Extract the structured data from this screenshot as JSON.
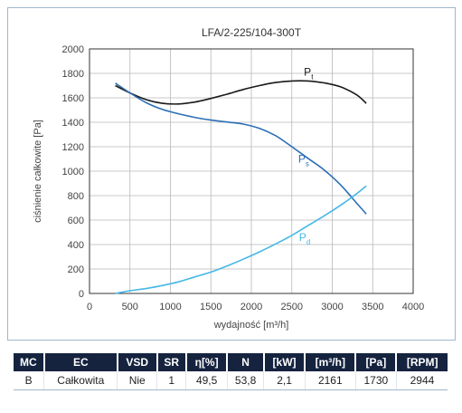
{
  "chart_data": {
    "type": "line",
    "title": "LFA/2-225/104-300T",
    "xlabel": "wydajność [m³/h]",
    "ylabel": "ciśnienie całkowite [Pa]",
    "xlim": [
      0,
      4000
    ],
    "ylim": [
      0,
      2000
    ],
    "xticks": [
      0,
      500,
      1000,
      1500,
      2000,
      2500,
      3000,
      3500,
      4000
    ],
    "yticks": [
      0,
      200,
      400,
      600,
      800,
      1000,
      1200,
      1400,
      1600,
      1800,
      2000
    ],
    "grid": true,
    "series": [
      {
        "name": "Pt",
        "label_main": "P",
        "label_sub": "t",
        "color": "#1a1a1a",
        "x": [
          320,
          500,
          700,
          900,
          1100,
          1300,
          1500,
          1700,
          1900,
          2100,
          2300,
          2500,
          2700,
          2900,
          3100,
          3300,
          3420
        ],
        "y": [
          1700,
          1640,
          1585,
          1555,
          1550,
          1565,
          1595,
          1630,
          1668,
          1700,
          1725,
          1738,
          1738,
          1722,
          1690,
          1625,
          1555
        ]
      },
      {
        "name": "Ps",
        "label_main": "P",
        "label_sub": "s",
        "color": "#2c6fb6",
        "x": [
          320,
          500,
          700,
          900,
          1100,
          1300,
          1500,
          1700,
          1900,
          2100,
          2300,
          2500,
          2700,
          2900,
          3100,
          3300,
          3420
        ],
        "y": [
          1720,
          1640,
          1560,
          1505,
          1470,
          1440,
          1418,
          1402,
          1385,
          1350,
          1290,
          1200,
          1105,
          1010,
          890,
          740,
          650
        ]
      },
      {
        "name": "Pd",
        "label_main": "P",
        "label_sub": "d",
        "color": "#45b8e6",
        "x": [
          320,
          500,
          700,
          900,
          1100,
          1300,
          1500,
          1700,
          1900,
          2100,
          2300,
          2500,
          2700,
          2900,
          3100,
          3300,
          3420
        ],
        "y": [
          0,
          22,
          40,
          65,
          95,
          135,
          175,
          225,
          280,
          340,
          405,
          475,
          555,
          635,
          720,
          815,
          880
        ]
      }
    ]
  },
  "table": {
    "headers": [
      "MC",
      "EC",
      "VSD",
      "SR",
      "η[%]",
      "N",
      "[kW]",
      "[m³/h]",
      "[Pa]",
      "[RPM]"
    ],
    "rows": [
      [
        "B",
        "Całkowita",
        "Nie",
        "1",
        "49,5",
        "53,8",
        "2,1",
        "2161",
        "1730",
        "2944"
      ]
    ]
  }
}
